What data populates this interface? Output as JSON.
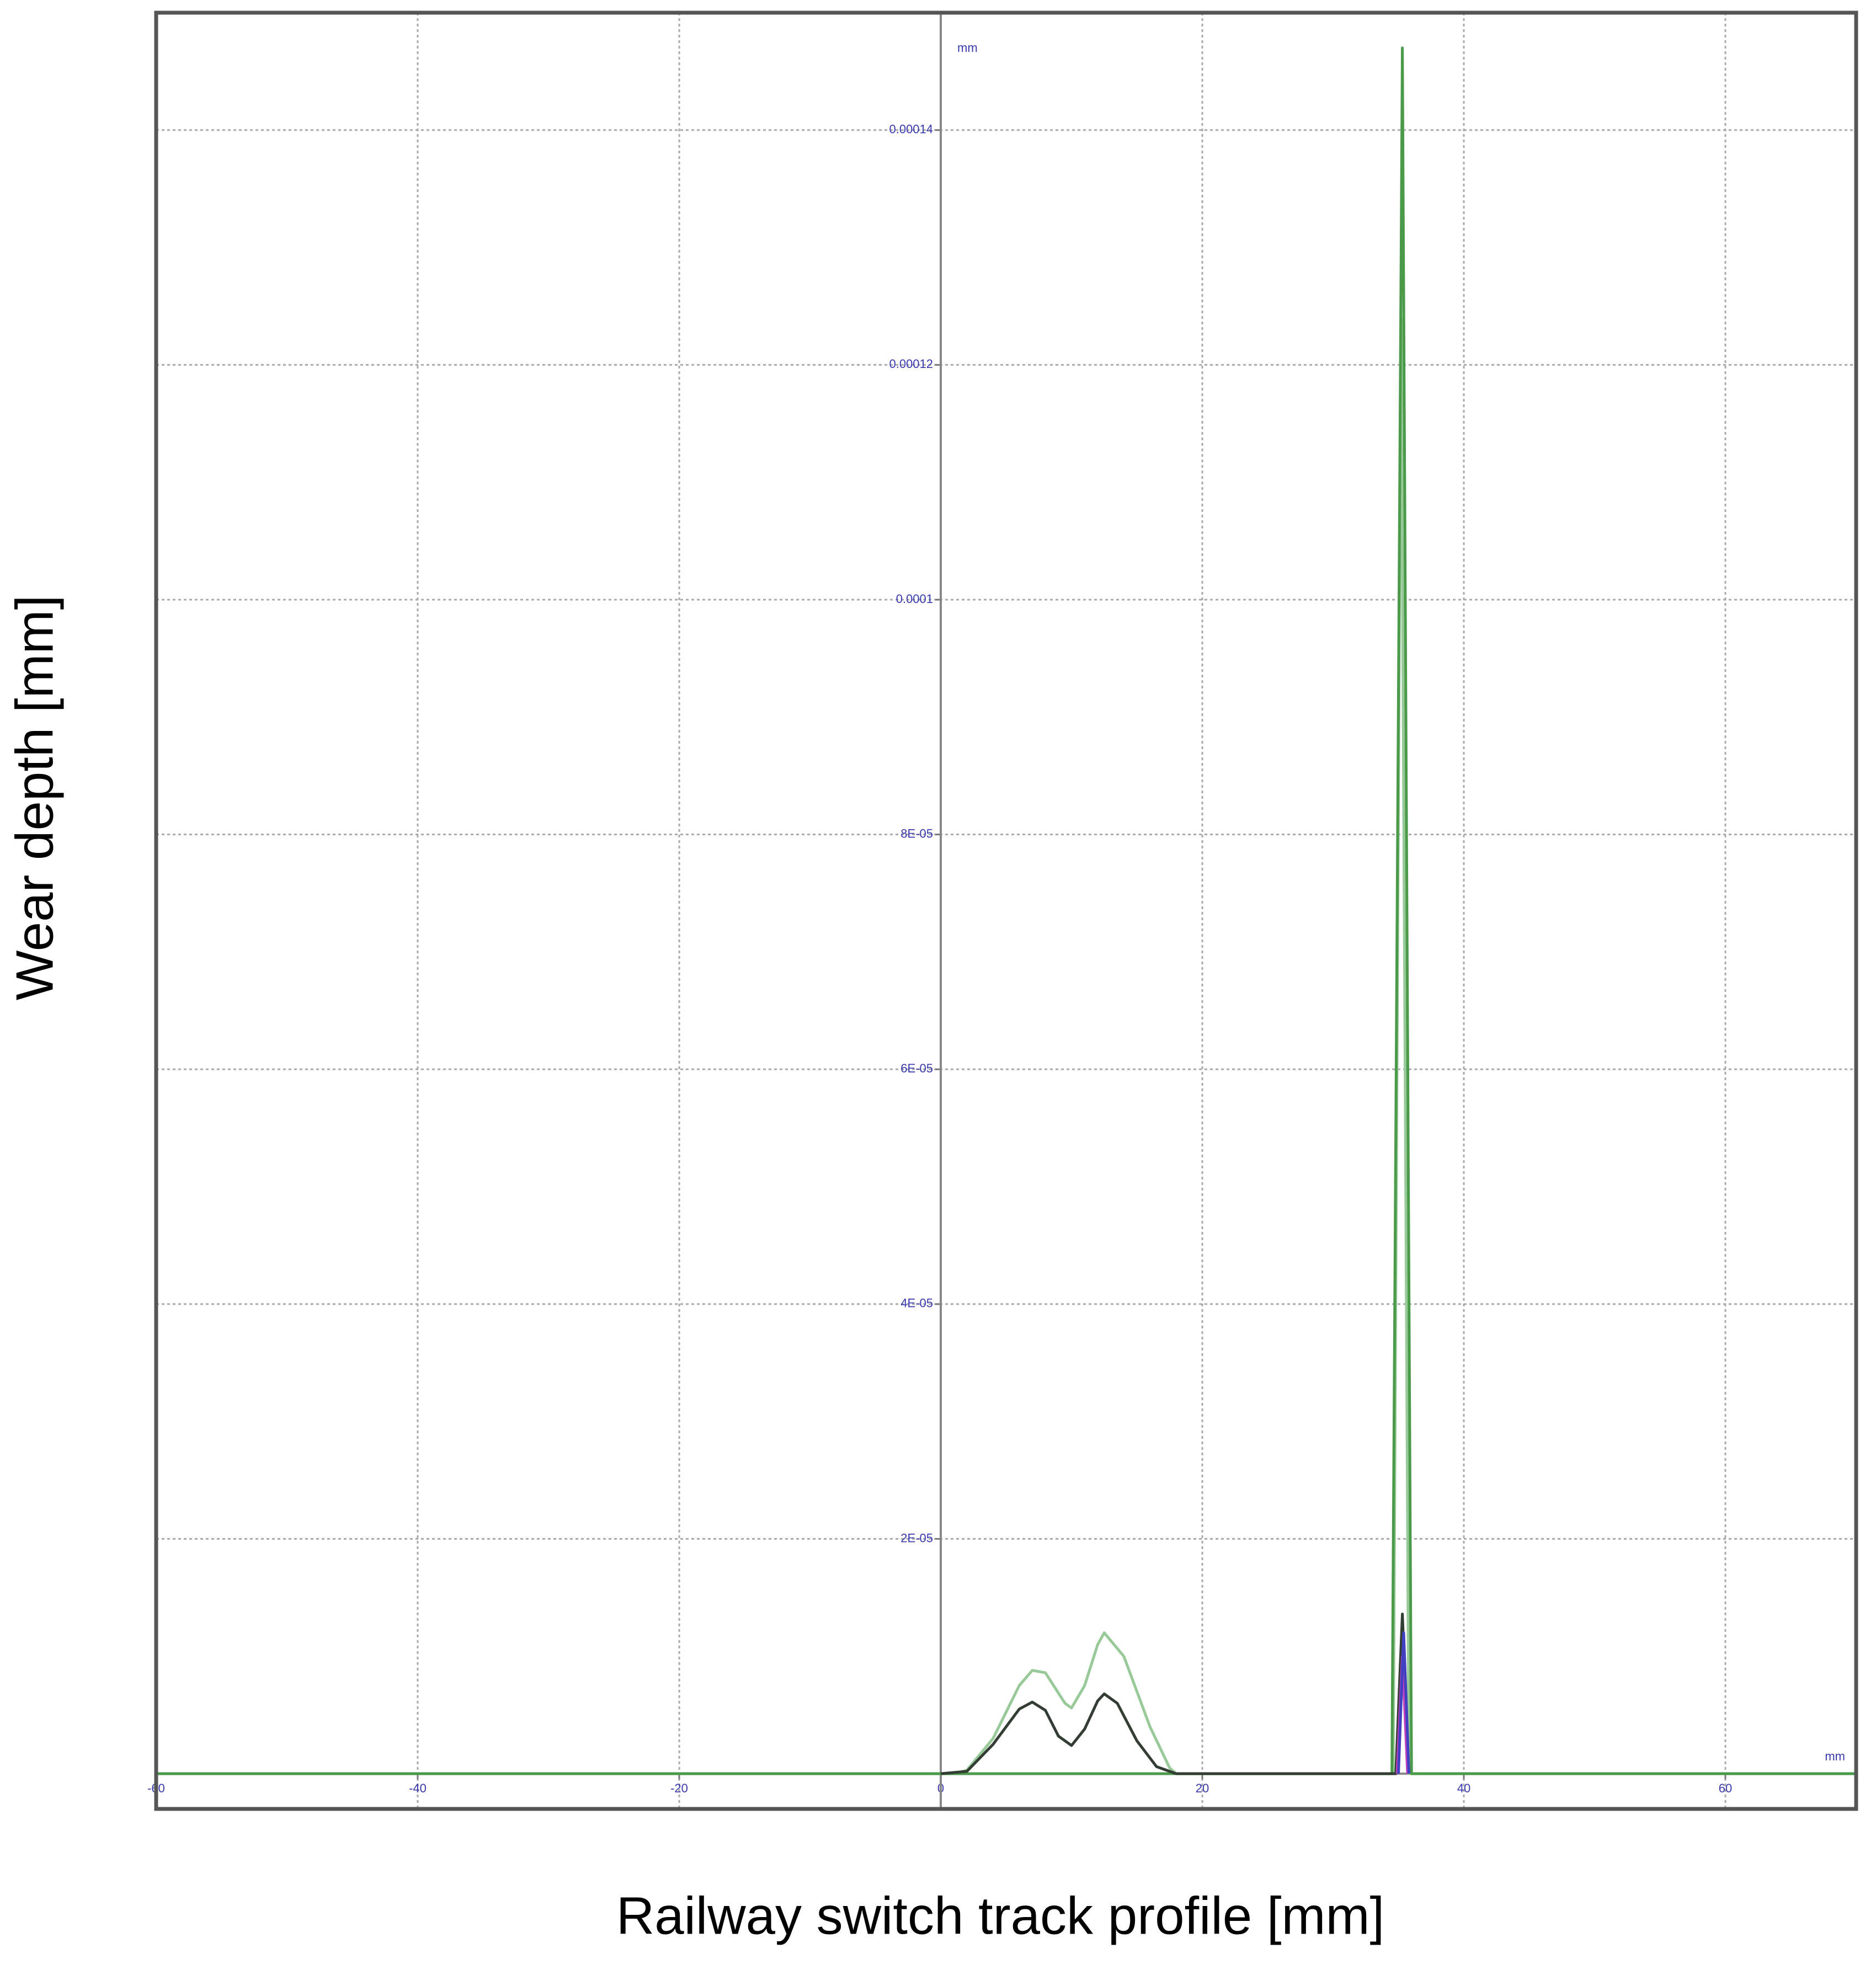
{
  "chart_data": {
    "type": "line",
    "xlabel": "Railway switch track profile [mm]",
    "ylabel": "Wear depth [mm]",
    "x_unit": "mm",
    "y_unit": "mm",
    "xlim": [
      -60,
      70
    ],
    "ylim": [
      -3e-06,
      0.00015
    ],
    "xticks": [
      -60,
      -40,
      -20,
      0,
      20,
      40,
      60
    ],
    "yticks": [
      {
        "value": 2e-05,
        "label": "2E-05"
      },
      {
        "value": 4e-05,
        "label": "4E-05"
      },
      {
        "value": 6e-05,
        "label": "6E-05"
      },
      {
        "value": 8e-05,
        "label": "8E-05"
      },
      0.0001,
      0.00012,
      0.00014
    ],
    "grid": true,
    "series": [
      {
        "color": "#98c998",
        "x": [
          -60,
          0,
          1,
          2,
          4,
          6,
          7,
          8,
          9.5,
          10,
          11,
          12,
          12.5,
          14,
          16,
          17.5,
          18,
          34.6,
          35.2,
          35.8,
          70
        ],
        "values": [
          0,
          0,
          0,
          3e-07,
          3e-06,
          7.5e-06,
          8.8e-06,
          8.6e-06,
          6e-06,
          5.6e-06,
          7.5e-06,
          1.1e-05,
          1.2e-05,
          1e-05,
          4e-06,
          5e-07,
          0,
          0,
          0.000124,
          0,
          0
        ]
      },
      {
        "color": "#4a9a4a",
        "x": [
          -60,
          34.5,
          35.3,
          36,
          70
        ],
        "values": [
          0,
          0,
          0.000147,
          0,
          0
        ]
      },
      {
        "color": "#333d33",
        "x": [
          0,
          2,
          4,
          6,
          7,
          8,
          9,
          10,
          11,
          12,
          12.5,
          13.5,
          15,
          16.5,
          18,
          34.8,
          35.3,
          35.8
        ],
        "values": [
          0,
          2e-07,
          2.5e-06,
          5.5e-06,
          6.1e-06,
          5.4e-06,
          3.2e-06,
          2.4e-06,
          3.8e-06,
          6.2e-06,
          6.8e-06,
          6e-06,
          2.8e-06,
          6e-07,
          0,
          0,
          1.36e-05,
          0
        ]
      },
      {
        "color": "#c040c0",
        "x": [
          34.9,
          35.3,
          35.7
        ],
        "values": [
          0,
          1e-05,
          0
        ]
      },
      {
        "color": "#4040c0",
        "x": [
          35,
          35.4,
          35.8
        ],
        "values": [
          0,
          1.2e-05,
          0
        ]
      }
    ]
  }
}
